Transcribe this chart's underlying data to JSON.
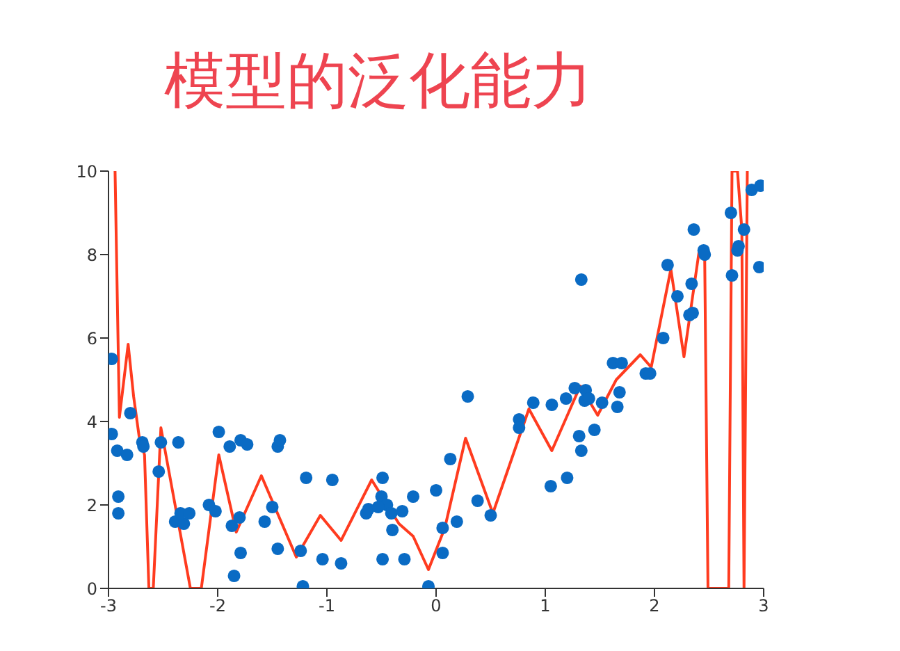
{
  "chart_data": {
    "type": "scatter",
    "title": "模型的泛化能力",
    "xlim": [
      -3,
      3
    ],
    "xticks": [
      -3,
      -2,
      -1,
      0,
      1,
      2,
      3
    ],
    "ylim": [
      0,
      10
    ],
    "yticks": [
      0,
      2,
      4,
      6,
      8,
      10
    ],
    "grid": false,
    "legend": false,
    "series": [
      {
        "color": "#0a6bc4",
        "marker": "circle",
        "x": [
          -2.97,
          -2.97,
          -2.92,
          -2.83,
          -2.91,
          -2.91,
          -2.8,
          -2.69,
          -2.68,
          -2.54,
          -2.52,
          -2.36,
          -2.39,
          -2.31,
          -2.34,
          -2.26,
          -2.08,
          -2.02,
          -1.99,
          -1.89,
          -1.79,
          -1.73,
          -1.87,
          -1.8,
          -1.79,
          -1.85,
          -1.45,
          -1.43,
          -1.57,
          -1.5,
          -1.45,
          -1.24,
          -1.22,
          -1.19,
          -1.04,
          -0.95,
          -0.87,
          -0.64,
          -0.5,
          -0.49,
          -0.62,
          -0.45,
          -0.53,
          -0.41,
          -0.4,
          -0.49,
          -0.29,
          -0.21,
          -0.31,
          -0.07,
          0.0,
          0.06,
          0.06,
          0.13,
          0.19,
          0.29,
          0.38,
          0.5,
          0.76,
          0.76,
          0.89,
          1.05,
          1.06,
          1.19,
          1.2,
          1.33,
          1.27,
          1.31,
          1.33,
          1.36,
          1.37,
          1.45,
          1.4,
          1.52,
          1.62,
          1.7,
          1.66,
          1.68,
          1.92,
          1.96,
          2.08,
          2.12,
          2.21,
          2.32,
          2.35,
          2.34,
          2.36,
          2.45,
          2.46,
          2.7,
          2.71,
          2.76,
          2.77,
          2.82,
          2.89,
          2.97,
          2.96
        ],
        "values": [
          5.5,
          3.7,
          3.3,
          3.2,
          2.2,
          1.8,
          4.2,
          3.5,
          3.4,
          2.8,
          3.5,
          3.5,
          1.6,
          1.55,
          1.8,
          1.8,
          2.0,
          1.85,
          3.75,
          3.4,
          3.55,
          3.45,
          1.5,
          1.7,
          0.85,
          0.3,
          3.4,
          3.55,
          1.6,
          1.95,
          0.95,
          0.9,
          0.05,
          2.65,
          0.7,
          2.6,
          0.6,
          1.8,
          2.2,
          2.65,
          1.9,
          2.0,
          1.95,
          1.8,
          1.4,
          0.7,
          0.7,
          2.2,
          1.85,
          0.05,
          2.35,
          1.45,
          0.85,
          3.1,
          1.6,
          4.6,
          2.1,
          1.75,
          4.05,
          3.85,
          4.45,
          2.45,
          4.4,
          4.55,
          2.65,
          7.4,
          4.8,
          3.65,
          3.3,
          4.5,
          4.75,
          3.8,
          4.55,
          4.45,
          5.4,
          5.4,
          4.35,
          4.7,
          5.15,
          5.15,
          6.0,
          7.75,
          7.0,
          6.55,
          6.6,
          7.3,
          8.6,
          8.1,
          8.0,
          9.0,
          7.5,
          8.1,
          8.2,
          8.6,
          9.55,
          9.65,
          7.7
        ]
      },
      {
        "type": "line",
        "color": "#ff3b1f",
        "line_style": "solid",
        "marker": "none",
        "x": [
          -2.94,
          -2.9,
          -2.82,
          -2.77,
          -2.72,
          -2.67,
          -2.63,
          -2.59,
          -2.52,
          -2.25,
          -2.15,
          -1.99,
          -1.83,
          -1.6,
          -1.28,
          -1.06,
          -0.87,
          -0.59,
          -0.34,
          -0.21,
          -0.07,
          0.08,
          0.27,
          0.52,
          0.85,
          1.06,
          1.32,
          1.48,
          1.65,
          1.87,
          1.97,
          2.15,
          2.27,
          2.41,
          2.46,
          2.49,
          2.68,
          2.71,
          2.76,
          2.8,
          2.82,
          2.85
        ],
        "values": [
          10,
          4.1,
          5.85,
          4.6,
          3.65,
          3.2,
          0,
          0,
          3.85,
          0,
          0,
          3.2,
          1.35,
          2.7,
          0.75,
          1.75,
          1.15,
          2.6,
          1.55,
          1.25,
          0.45,
          1.45,
          3.6,
          1.8,
          4.3,
          3.3,
          4.85,
          4.15,
          5.0,
          5.6,
          5.3,
          7.65,
          5.55,
          8.1,
          7.9,
          0,
          0,
          10,
          10,
          8.6,
          0,
          10
        ]
      }
    ]
  }
}
